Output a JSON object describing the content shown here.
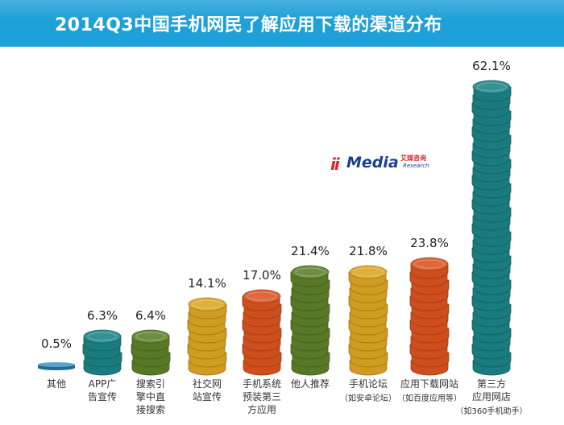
{
  "title": "2014Q3中国手机网民了解应用下载的渠道分布",
  "logo": {
    "mark": "ii",
    "word": "Media",
    "cn": "艾媒咨询",
    "en": "Research"
  },
  "chart_data": {
    "type": "bar",
    "title": "2014Q3中国手机网民了解应用下载的渠道分布",
    "unit": "%",
    "categories": [
      {
        "lines": [
          "其他"
        ],
        "sub": ""
      },
      {
        "lines": [
          "APP广",
          "告宣传"
        ],
        "sub": ""
      },
      {
        "lines": [
          "搜索引",
          "擎中直",
          "接搜索"
        ],
        "sub": ""
      },
      {
        "lines": [
          "社交网",
          "站宣传"
        ],
        "sub": ""
      },
      {
        "lines": [
          "手机系统",
          "预装第三",
          "方应用"
        ],
        "sub": ""
      },
      {
        "lines": [
          "他人推荐"
        ],
        "sub": ""
      },
      {
        "lines": [
          "手机论坛"
        ],
        "sub": "（如安卓论坛）"
      },
      {
        "lines": [
          "应用下载网站"
        ],
        "sub": "（如百度应用等）"
      },
      {
        "lines": [
          "第三方",
          "应用网店"
        ],
        "sub": "（如360手机助手）"
      }
    ],
    "values": [
      0.5,
      6.3,
      6.4,
      14.1,
      17.0,
      21.4,
      21.8,
      23.8,
      62.1
    ],
    "value_labels": [
      "0.5%",
      "6.3%",
      "6.4%",
      "14.1%",
      "17.0%",
      "21.4%",
      "21.8%",
      "23.8%",
      "62.1%"
    ],
    "colors": [
      "#2a8fc0",
      "#1b8285",
      "#5c7f28",
      "#dba421",
      "#d9531f",
      "#5c7f28",
      "#dba421",
      "#d9531f",
      "#1b8285"
    ],
    "ylim": [
      0,
      62.1
    ]
  }
}
